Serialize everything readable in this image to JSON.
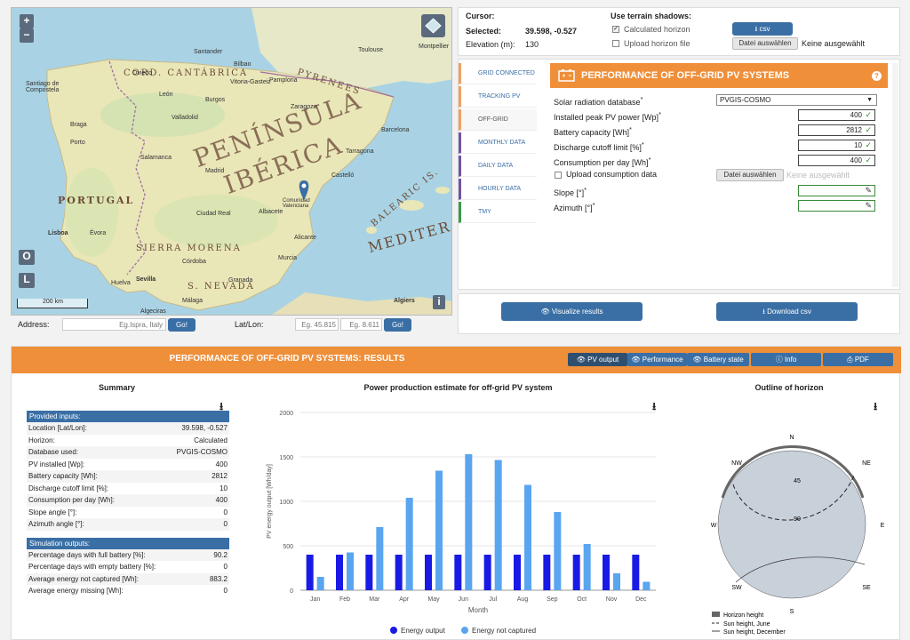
{
  "map": {
    "zoom_in": "+",
    "zoom_out": "−",
    "o_btn": "O",
    "l_btn": "L",
    "i_btn": "i",
    "scale": "200 km",
    "labels": {
      "peninsula": "PENÍNSULA",
      "iberica": "IBÉRICA",
      "portugal": "PORTUGAL",
      "sierra_morena": "SIERRA MORENA",
      "s_nevada": "S. NEVADA",
      "cord_cantabrica": "CORD. CANTÁBRICA",
      "pyrenees": "PYRENEES",
      "balearic": "BALEARIC IS.",
      "mediter": "MEDITER"
    },
    "cities": [
      "Santander",
      "Santiago de Compostela",
      "León",
      "Burgos",
      "Vitoria-Gasteiz",
      "Valladolid",
      "Zaragoza",
      "Barcelona",
      "Madrid",
      "Braga",
      "Porto",
      "Salamanca",
      "Tarragona",
      "Castelló",
      "Comunidad Valenciana",
      "Lisboa",
      "Évora",
      "Ciudad Real",
      "Albacete",
      "Alicante",
      "Murcia",
      "Córdoba",
      "Sevilla",
      "Granada",
      "Huelva",
      "Málaga",
      "Algeciras",
      "Algiers",
      "Oviedo",
      "Bilbao",
      "Pamplona",
      "Toulouse",
      "Montpellier"
    ]
  },
  "address": {
    "label": "Address:",
    "placeholder": "Eg.Ispra, Italy",
    "go": "Go!",
    "latlon_label": "Lat/Lon:",
    "lat_placeholder": "Eg. 45.815",
    "lon_placeholder": "Eg. 8.611",
    "go2": "Go!"
  },
  "cursor": {
    "cursor_label": "Cursor:",
    "selected_label": "Selected:",
    "selected_value": "39.598, -0.527",
    "elevation_label": "Elevation (m):",
    "elevation_value": "130",
    "terrain_label": "Use terrain shadows:",
    "calc_horizon": "Calculated horizon",
    "upload_horizon": "Upload horizon file",
    "csv_btn": "csv",
    "file_btn": "Datei auswählen",
    "file_none": "Keine ausgewählt"
  },
  "tabs": [
    "GRID CONNECTED",
    "TRACKING PV",
    "OFF-GRID",
    "MONTHLY DATA",
    "DAILY DATA",
    "HOURLY DATA",
    "TMY"
  ],
  "offgrid": {
    "title": "PERFORMANCE OF OFF-GRID PV SYSTEMS",
    "help": "?",
    "db_label": "Solar radiation database",
    "db_value": "PVGIS-COSMO",
    "pv_label": "Installed peak PV power [Wp]",
    "pv_value": "400",
    "batt_label": "Battery capacity [Wh]",
    "batt_value": "2812",
    "cutoff_label": "Discharge cutoff limit [%]",
    "cutoff_value": "10",
    "cons_label": "Consumption per day [Wh]",
    "cons_value": "400",
    "upload_cons": "Upload consumption data",
    "file_btn": "Datei auswählen",
    "file_none": "Keine ausgewählt",
    "slope_label": "Slope [°]",
    "azimuth_label": "Azimuth [°]",
    "asterisk": "*"
  },
  "actions": {
    "visualize": "Visualize results",
    "download": "Download csv"
  },
  "results": {
    "title": "PERFORMANCE OF OFF-GRID PV SYSTEMS: RESULTS",
    "btn_pv": "PV output",
    "btn_perf": "Performance",
    "btn_batt": "Battery state",
    "btn_info": "Info",
    "btn_pdf": "PDF",
    "summary_title": "Summary",
    "chart_title": "Power production estimate for off-grid PV system",
    "horizon_title": "Outline of horizon",
    "provided_inputs": "Provided inputs:",
    "inputs": [
      {
        "k": "Location [Lat/Lon]:",
        "v": "39.598, -0.527"
      },
      {
        "k": "Horizon:",
        "v": "Calculated"
      },
      {
        "k": "Database used:",
        "v": "PVGIS-COSMO"
      },
      {
        "k": "PV installed [Wp]:",
        "v": "400"
      },
      {
        "k": "Battery capacity [Wh]:",
        "v": "2812"
      },
      {
        "k": "Discharge cutoff limit [%]:",
        "v": "10"
      },
      {
        "k": "Consumption per day [Wh]:",
        "v": "400"
      },
      {
        "k": "Slope angle [°]:",
        "v": "0"
      },
      {
        "k": "Azimuth angle [°]:",
        "v": "0"
      }
    ],
    "sim_outputs": "Simulation outputs:",
    "outputs": [
      {
        "k": "Percentage days with full battery [%]:",
        "v": "90.2"
      },
      {
        "k": "Percentage days with empty battery [%]:",
        "v": "0"
      },
      {
        "k": "Average energy not captured [Wh]:",
        "v": "883.2"
      },
      {
        "k": "Average energy missing [Wh]:",
        "v": "0"
      }
    ]
  },
  "horizon": {
    "N": "N",
    "NE": "NE",
    "E": "E",
    "SE": "SE",
    "S": "S",
    "SW": "SW",
    "W": "W",
    "NW": "NW",
    "r45": "45",
    "r90": "90",
    "legend": [
      "Horizon height",
      "Sun height, June",
      "Sun height, December"
    ]
  },
  "chart_data": {
    "type": "bar",
    "title": "Power production estimate for off-grid PV system",
    "xlabel": "Month",
    "ylabel": "PV energy output [Wh/day]",
    "ylim": [
      0,
      2000
    ],
    "yticks": [
      0,
      500,
      1000,
      1500,
      2000
    ],
    "categories": [
      "Jan",
      "Feb",
      "Mar",
      "Apr",
      "May",
      "Jun",
      "Jul",
      "Aug",
      "Sep",
      "Oct",
      "Nov",
      "Dec"
    ],
    "series": [
      {
        "name": "Energy output",
        "color": "#1a1ae6",
        "values": [
          400,
          400,
          400,
          400,
          400,
          400,
          400,
          400,
          400,
          400,
          400,
          400
        ]
      },
      {
        "name": "Energy not captured",
        "color": "#5aa5f0",
        "values": [
          150,
          425,
          710,
          1040,
          1345,
          1530,
          1465,
          1185,
          880,
          520,
          190,
          95
        ]
      }
    ],
    "legend_position": "bottom",
    "grid": true
  },
  "colors": {
    "orange": "#ef8f3a",
    "blue": "#3a6fa5",
    "dark_blue_btn": "#2f5f90"
  }
}
